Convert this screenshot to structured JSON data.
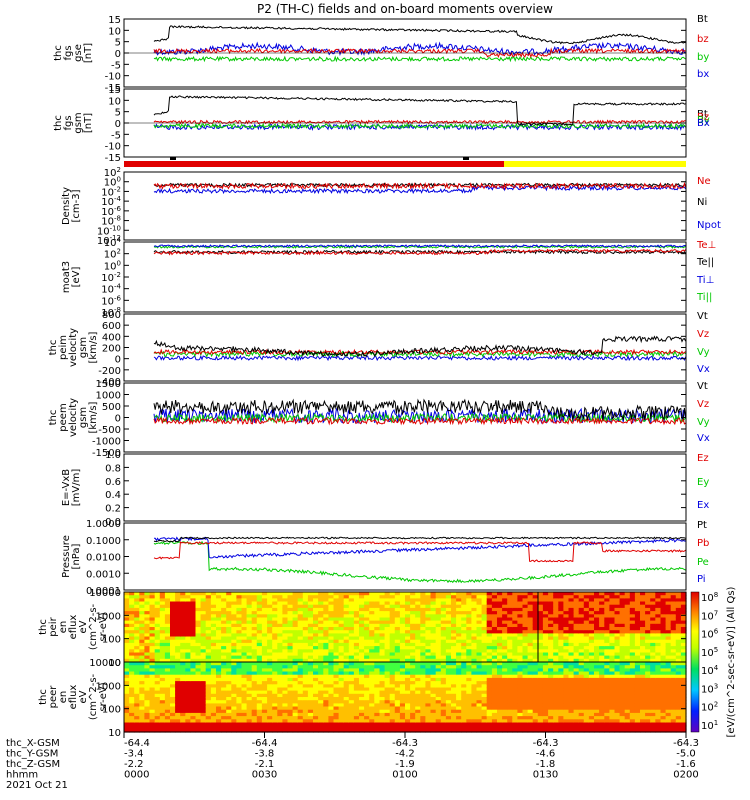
{
  "title": "P2 (TH-C) fields and on-board moments overview",
  "colors": {
    "black": "#000000",
    "red": "#e00000",
    "green": "#00c800",
    "blue": "#0000e0",
    "yellow": "#ffff00"
  },
  "x_axis": {
    "ticks": [
      "0000",
      "0030",
      "0100",
      "0130",
      "0200"
    ],
    "rows": [
      {
        "label": "thc_X-GSM",
        "values": [
          "-64.4",
          "-64.4",
          "-64.3",
          "-64.3",
          "-64.3"
        ]
      },
      {
        "label": "thc_Y-GSM",
        "values": [
          "-3.4",
          "-3.8",
          "-4.2",
          "-4.6",
          "-5.0"
        ]
      },
      {
        "label": "thc_Z-GSM",
        "values": [
          "-2.2",
          "-2.1",
          "-1.9",
          "-1.8",
          "-1.6"
        ]
      },
      {
        "label": "hhmm",
        "values": [
          "0000",
          "0030",
          "0100",
          "0130",
          "0200"
        ]
      }
    ],
    "date": "2021 Oct 21"
  },
  "colorbar": {
    "label": "[eV/(cm^2-sec-sr-eV)] (All Qs)",
    "tick_labels": [
      "10^8",
      "10^7",
      "10^6",
      "10^5",
      "10^4",
      "10^3",
      "10^2",
      "10^1"
    ]
  },
  "chart_data": [
    {
      "panel": "fgs_gse",
      "type": "line",
      "ylabel": [
        "thc",
        "fgs",
        "gse",
        "[nT]"
      ],
      "yticks": [
        "15",
        "10",
        "5",
        "0",
        "-5",
        "-10",
        "-15"
      ],
      "ylim": [
        -17,
        17
      ],
      "legend": [
        "Bt",
        "bz",
        "by",
        "bx"
      ],
      "legend_colors": [
        "black",
        "red",
        "green",
        "blue"
      ]
    },
    {
      "panel": "fgs_gsm",
      "type": "line",
      "ylabel": [
        "thc",
        "fgs",
        "gsm",
        "[nT]"
      ],
      "yticks": [
        "15",
        "10",
        "5",
        "0",
        "-5",
        "-10",
        "-15"
      ],
      "ylim": [
        -17,
        17
      ],
      "legend": [
        "Bt",
        "Bz",
        "By",
        "Bx"
      ],
      "legend_colors": [
        "black",
        "red",
        "green",
        "blue"
      ]
    },
    {
      "panel": "density",
      "type": "line",
      "ylabel": [
        "Density",
        "[cm-3]"
      ],
      "yticks": [
        "10^2",
        "10^0",
        "10^-2",
        "10^-4",
        "10^-6",
        "10^-8",
        "10^-10",
        "10^-12"
      ],
      "yscale": "log",
      "legend": [
        "Ne",
        "Ni",
        "Npot"
      ],
      "legend_colors": [
        "red",
        "black",
        "blue"
      ]
    },
    {
      "panel": "temperature",
      "type": "line",
      "ylabel": [
        "moat3",
        "[eV]"
      ],
      "yticks": [
        "10^4",
        "10^2",
        "10^0",
        "10^-2",
        "10^-4",
        "10^-6",
        "10^-8"
      ],
      "yscale": "log",
      "legend": [
        "Te⊥",
        "Te||",
        "Ti⊥",
        "Ti||"
      ],
      "legend_colors": [
        "red",
        "black",
        "blue",
        "green"
      ]
    },
    {
      "panel": "ion_velocity",
      "type": "line",
      "ylabel": [
        "thc",
        "peim",
        "velocity",
        "gsm",
        "[km/s]"
      ],
      "yticks": [
        "800",
        "600",
        "400",
        "200",
        "0",
        "-200",
        "-400"
      ],
      "ylim": [
        -400,
        800
      ],
      "legend": [
        "Vt",
        "Vz",
        "Vy",
        "Vx"
      ],
      "legend_colors": [
        "black",
        "red",
        "green",
        "blue"
      ]
    },
    {
      "panel": "electron_velocity",
      "type": "line",
      "ylabel": [
        "thc",
        "peem",
        "velocity",
        "gsm",
        "[km/s]"
      ],
      "yticks": [
        "1500",
        "1000",
        "500",
        "0",
        "-500",
        "-1000",
        "-1500"
      ],
      "ylim": [
        -1500,
        1500
      ],
      "legend": [
        "Vt",
        "Vz",
        "Vy",
        "Vx"
      ],
      "legend_colors": [
        "black",
        "red",
        "green",
        "blue"
      ]
    },
    {
      "panel": "efield",
      "type": "line",
      "ylabel": [
        "E=-VxB",
        "[mV/m]"
      ],
      "yticks": [
        "1.0",
        "0.8",
        "0.6",
        "0.4",
        "0.2",
        "0.0"
      ],
      "ylim": [
        0,
        1
      ],
      "legend": [
        "Ez",
        "Ey",
        "Ex"
      ],
      "legend_colors": [
        "red",
        "green",
        "blue"
      ]
    },
    {
      "panel": "pressure",
      "type": "line",
      "ylabel": [
        "Pressure",
        "[nPa]"
      ],
      "yticks": [
        "1.0000",
        "0.1000",
        "0.0100",
        "0.0010",
        "0.0001"
      ],
      "yscale": "log",
      "legend": [
        "Pt",
        "Pb",
        "Pe",
        "Pi"
      ],
      "legend_colors": [
        "black",
        "red",
        "green",
        "blue"
      ]
    },
    {
      "panel": "ion_spectrogram",
      "type": "heatmap",
      "ylabel": [
        "thc",
        "peir",
        "en",
        "eflux",
        "eV",
        "(cm^2-s-",
        "sr-eV)"
      ],
      "yticks": [
        "10000",
        "1000",
        "100",
        "10"
      ],
      "yscale": "log"
    },
    {
      "panel": "electron_spectrogram",
      "type": "heatmap",
      "ylabel": [
        "thc",
        "peer",
        "en",
        "eflux",
        "eV",
        "(cm^2-s-",
        "sr-eV)"
      ],
      "yticks": [
        "10000",
        "1000",
        "100",
        "10"
      ],
      "yscale": "log"
    }
  ]
}
